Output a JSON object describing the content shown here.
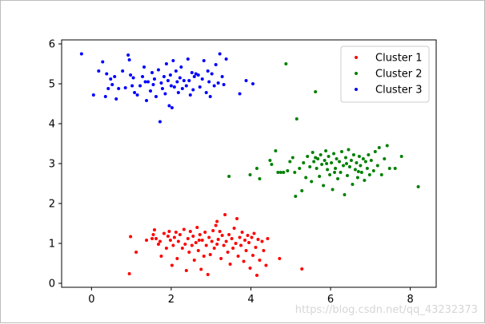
{
  "chart_data": {
    "type": "scatter",
    "title": "",
    "xlabel": "",
    "ylabel": "",
    "xlim": [
      -0.75,
      8.65
    ],
    "ylim": [
      -0.1,
      6.1
    ],
    "xticks": [
      0,
      2,
      4,
      6,
      8
    ],
    "yticks": [
      0,
      1,
      2,
      3,
      4,
      5,
      6
    ],
    "grid": false,
    "legend_position": "top-right",
    "series": [
      {
        "name": "Cluster 1",
        "color": "#ff0000",
        "points": [
          [
            0.95,
            0.24
          ],
          [
            0.98,
            1.17
          ],
          [
            1.12,
            0.78
          ],
          [
            1.38,
            1.08
          ],
          [
            1.52,
            1.12
          ],
          [
            1.55,
            1.22
          ],
          [
            1.58,
            1.34
          ],
          [
            1.62,
            1.12
          ],
          [
            1.68,
            0.98
          ],
          [
            1.72,
            1.05
          ],
          [
            1.75,
            0.68
          ],
          [
            1.82,
            1.25
          ],
          [
            1.88,
            0.88
          ],
          [
            1.92,
            1.18
          ],
          [
            1.95,
            1.3
          ],
          [
            1.98,
            1.08
          ],
          [
            2.02,
            0.45
          ],
          [
            2.05,
            0.95
          ],
          [
            2.08,
            1.15
          ],
          [
            2.12,
            1.28
          ],
          [
            2.15,
            0.62
          ],
          [
            2.18,
            1.05
          ],
          [
            2.22,
            1.22
          ],
          [
            2.28,
            0.88
          ],
          [
            2.32,
            1.35
          ],
          [
            2.35,
            0.98
          ],
          [
            2.38,
            0.32
          ],
          [
            2.42,
            1.12
          ],
          [
            2.45,
            0.78
          ],
          [
            2.48,
            1.3
          ],
          [
            2.52,
            0.95
          ],
          [
            2.55,
            1.18
          ],
          [
            2.58,
            0.58
          ],
          [
            2.62,
            1.02
          ],
          [
            2.65,
            1.4
          ],
          [
            2.68,
            0.82
          ],
          [
            2.72,
            1.22
          ],
          [
            2.75,
            0.35
          ],
          [
            2.78,
            1.08
          ],
          [
            2.82,
            0.68
          ],
          [
            2.85,
            1.28
          ],
          [
            2.88,
            0.95
          ],
          [
            2.92,
            0.22
          ],
          [
            2.95,
            1.15
          ],
          [
            2.98,
            0.72
          ],
          [
            3.02,
            1.05
          ],
          [
            3.05,
            1.32
          ],
          [
            3.08,
            0.88
          ],
          [
            3.12,
            1.45
          ],
          [
            3.15,
            1.55
          ],
          [
            3.18,
            1.1
          ],
          [
            3.22,
            1.3
          ],
          [
            3.25,
            0.62
          ],
          [
            3.28,
            1.2
          ],
          [
            3.32,
            0.95
          ],
          [
            3.35,
            1.72
          ],
          [
            3.38,
            1.05
          ],
          [
            3.42,
            0.78
          ],
          [
            3.45,
            1.22
          ],
          [
            3.48,
            0.48
          ],
          [
            3.52,
            1.12
          ],
          [
            3.55,
            0.88
          ],
          [
            3.58,
            1.38
          ],
          [
            3.62,
            1.0
          ],
          [
            3.65,
            1.62
          ],
          [
            3.68,
            0.68
          ],
          [
            3.72,
            1.15
          ],
          [
            3.75,
            0.95
          ],
          [
            3.78,
            1.28
          ],
          [
            3.82,
            0.55
          ],
          [
            3.85,
            1.08
          ],
          [
            3.88,
            0.82
          ],
          [
            3.92,
            1.2
          ],
          [
            3.95,
            1.02
          ],
          [
            3.98,
            0.38
          ],
          [
            4.02,
            1.15
          ],
          [
            4.05,
            0.7
          ],
          [
            4.08,
            1.25
          ],
          [
            4.12,
            0.9
          ],
          [
            4.15,
            0.2
          ],
          [
            4.18,
            1.1
          ],
          [
            4.22,
            0.58
          ],
          [
            4.28,
            1.05
          ],
          [
            4.32,
            0.82
          ],
          [
            4.38,
            0.45
          ],
          [
            4.42,
            1.12
          ],
          [
            4.72,
            0.62
          ],
          [
            5.28,
            0.36
          ],
          [
            3.15,
            0.98
          ],
          [
            2.7,
            1.08
          ]
        ]
      },
      {
        "name": "Cluster 2",
        "color": "#008000",
        "points": [
          [
            3.45,
            2.68
          ],
          [
            3.98,
            2.72
          ],
          [
            4.15,
            2.88
          ],
          [
            4.22,
            2.62
          ],
          [
            4.48,
            3.08
          ],
          [
            4.52,
            2.98
          ],
          [
            4.62,
            3.32
          ],
          [
            4.68,
            2.78
          ],
          [
            4.75,
            2.78
          ],
          [
            4.82,
            2.78
          ],
          [
            4.88,
            5.5
          ],
          [
            4.92,
            2.82
          ],
          [
            4.98,
            3.05
          ],
          [
            5.05,
            3.15
          ],
          [
            5.1,
            2.78
          ],
          [
            5.12,
            2.18
          ],
          [
            5.15,
            4.12
          ],
          [
            5.22,
            2.88
          ],
          [
            5.28,
            2.32
          ],
          [
            5.32,
            3.02
          ],
          [
            5.38,
            2.65
          ],
          [
            5.42,
            3.18
          ],
          [
            5.48,
            2.92
          ],
          [
            5.52,
            2.55
          ],
          [
            5.55,
            3.28
          ],
          [
            5.58,
            3.05
          ],
          [
            5.62,
            4.8
          ],
          [
            5.65,
            2.88
          ],
          [
            5.68,
            3.12
          ],
          [
            5.72,
            2.68
          ],
          [
            5.75,
            3.22
          ],
          [
            5.78,
            2.98
          ],
          [
            5.82,
            2.45
          ],
          [
            5.85,
            3.08
          ],
          [
            5.88,
            3.32
          ],
          [
            5.92,
            2.85
          ],
          [
            5.95,
            3.18
          ],
          [
            5.98,
            2.72
          ],
          [
            6.02,
            3.02
          ],
          [
            6.05,
            2.35
          ],
          [
            6.08,
            3.25
          ],
          [
            6.12,
            2.88
          ],
          [
            6.15,
            3.12
          ],
          [
            6.18,
            2.62
          ],
          [
            6.22,
            3.05
          ],
          [
            6.25,
            2.78
          ],
          [
            6.28,
            3.3
          ],
          [
            6.32,
            2.95
          ],
          [
            6.35,
            2.22
          ],
          [
            6.38,
            3.15
          ],
          [
            6.42,
            2.7
          ],
          [
            6.45,
            3.35
          ],
          [
            6.48,
            2.92
          ],
          [
            6.52,
            3.08
          ],
          [
            6.55,
            2.48
          ],
          [
            6.58,
            3.22
          ],
          [
            6.62,
            2.85
          ],
          [
            6.65,
            3.02
          ],
          [
            6.68,
            2.65
          ],
          [
            6.72,
            3.18
          ],
          [
            6.75,
            2.95
          ],
          [
            6.78,
            2.78
          ],
          [
            6.82,
            3.12
          ],
          [
            6.85,
            2.58
          ],
          [
            6.88,
            3.05
          ],
          [
            6.92,
            2.88
          ],
          [
            6.95,
            3.22
          ],
          [
            6.98,
            2.72
          ],
          [
            7.02,
            3.08
          ],
          [
            7.08,
            2.82
          ],
          [
            7.12,
            3.3
          ],
          [
            7.18,
            2.95
          ],
          [
            7.22,
            3.4
          ],
          [
            7.28,
            2.72
          ],
          [
            7.35,
            3.12
          ],
          [
            7.42,
            3.45
          ],
          [
            7.48,
            2.88
          ],
          [
            7.62,
            2.88
          ],
          [
            7.78,
            3.18
          ],
          [
            8.2,
            2.42
          ],
          [
            5.62,
            3.15
          ],
          [
            6.1,
            2.78
          ],
          [
            6.4,
            3.0
          ],
          [
            5.9,
            3.0
          ],
          [
            6.7,
            2.8
          ]
        ]
      },
      {
        "name": "Cluster 3",
        "color": "#0000ff",
        "points": [
          [
            -0.25,
            5.75
          ],
          [
            0.05,
            4.72
          ],
          [
            0.18,
            5.32
          ],
          [
            0.28,
            5.55
          ],
          [
            0.35,
            4.68
          ],
          [
            0.38,
            5.25
          ],
          [
            0.42,
            4.88
          ],
          [
            0.48,
            5.12
          ],
          [
            0.52,
            4.98
          ],
          [
            0.58,
            5.18
          ],
          [
            0.62,
            4.62
          ],
          [
            0.68,
            4.88
          ],
          [
            0.78,
            5.32
          ],
          [
            0.85,
            4.9
          ],
          [
            0.92,
            5.72
          ],
          [
            0.95,
            5.6
          ],
          [
            0.98,
            5.22
          ],
          [
            1.02,
            4.95
          ],
          [
            1.05,
            5.15
          ],
          [
            1.08,
            4.78
          ],
          [
            1.15,
            4.72
          ],
          [
            1.22,
            4.95
          ],
          [
            1.28,
            5.18
          ],
          [
            1.32,
            5.42
          ],
          [
            1.38,
            4.58
          ],
          [
            1.42,
            5.05
          ],
          [
            1.48,
            4.82
          ],
          [
            1.52,
            5.28
          ],
          [
            1.55,
            4.98
          ],
          [
            1.58,
            5.12
          ],
          [
            1.62,
            4.68
          ],
          [
            1.68,
            5.35
          ],
          [
            1.72,
            4.05
          ],
          [
            1.75,
            5.02
          ],
          [
            1.78,
            4.88
          ],
          [
            1.82,
            5.18
          ],
          [
            1.85,
            4.75
          ],
          [
            1.88,
            5.5
          ],
          [
            1.92,
            5.08
          ],
          [
            1.95,
            4.45
          ],
          [
            1.98,
            5.22
          ],
          [
            2.02,
            4.4
          ],
          [
            2.05,
            5.58
          ],
          [
            2.08,
            4.92
          ],
          [
            2.12,
            5.32
          ],
          [
            2.15,
            5.05
          ],
          [
            2.18,
            4.78
          ],
          [
            2.22,
            5.15
          ],
          [
            2.25,
            5.42
          ],
          [
            2.28,
            4.88
          ],
          [
            2.32,
            5.08
          ],
          [
            2.38,
            4.95
          ],
          [
            2.42,
            5.62
          ],
          [
            2.48,
            4.72
          ],
          [
            2.52,
            5.28
          ],
          [
            2.55,
            4.85
          ],
          [
            2.58,
            5.18
          ],
          [
            2.62,
            5.25
          ],
          [
            2.68,
            5.22
          ],
          [
            2.72,
            4.92
          ],
          [
            2.78,
            5.12
          ],
          [
            2.82,
            5.58
          ],
          [
            2.88,
            4.78
          ],
          [
            2.92,
            5.32
          ],
          [
            2.95,
            5.05
          ],
          [
            2.98,
            4.68
          ],
          [
            3.02,
            5.25
          ],
          [
            3.08,
            4.95
          ],
          [
            3.12,
            5.48
          ],
          [
            3.18,
            5.02
          ],
          [
            3.22,
            5.75
          ],
          [
            3.28,
            5.18
          ],
          [
            3.32,
            4.98
          ],
          [
            3.38,
            5.62
          ],
          [
            3.72,
            4.75
          ],
          [
            3.88,
            5.08
          ],
          [
            4.05,
            5.0
          ],
          [
            2.0,
            4.95
          ],
          [
            1.35,
            5.05
          ],
          [
            2.45,
            5.08
          ]
        ]
      }
    ]
  },
  "watermark": "https://blog.csdn.net/qq_43232373"
}
